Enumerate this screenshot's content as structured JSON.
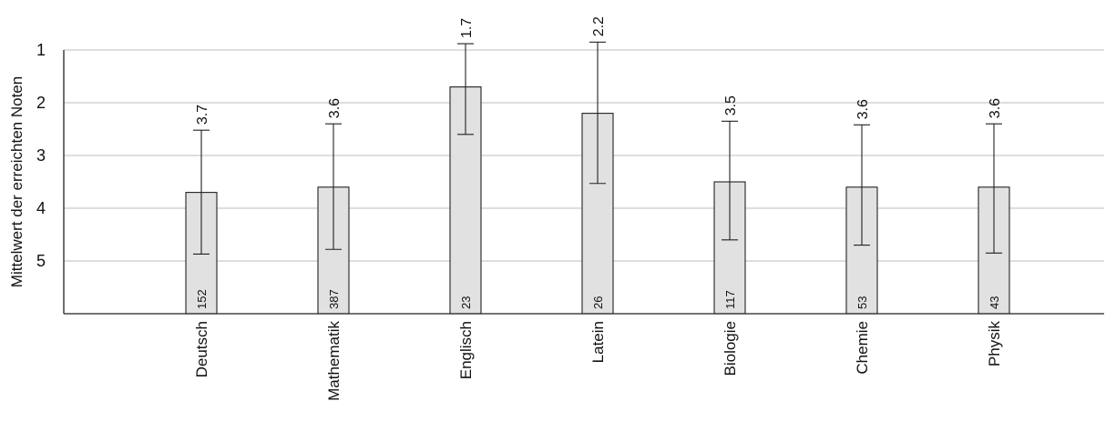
{
  "chart_data": {
    "type": "bar",
    "ylabel": "Mittelwert der erreichten Noten",
    "ylim": [
      1,
      6
    ],
    "y_reversed": true,
    "yticks": [
      "1",
      "2",
      "3",
      "4",
      "5"
    ],
    "grid": true,
    "bar_color": "#e1e1e1",
    "categories": [
      "Deutsch",
      "Mathematik",
      "Englisch",
      "Latein",
      "Biologie",
      "Chemie",
      "Physik"
    ],
    "values": [
      3.7,
      3.6,
      1.7,
      2.2,
      3.5,
      3.6,
      3.6
    ],
    "value_labels": [
      "3.7",
      "3.6",
      "1.7",
      "2.2",
      "3.5",
      "3.6",
      "3.6"
    ],
    "error_low": [
      2.52,
      2.4,
      0.88,
      0.85,
      2.35,
      2.42,
      2.4
    ],
    "error_high": [
      4.87,
      4.78,
      2.6,
      3.53,
      4.6,
      4.7,
      4.85
    ],
    "n": [
      "152",
      "387",
      "23",
      "26",
      "117",
      "53",
      "43"
    ]
  }
}
